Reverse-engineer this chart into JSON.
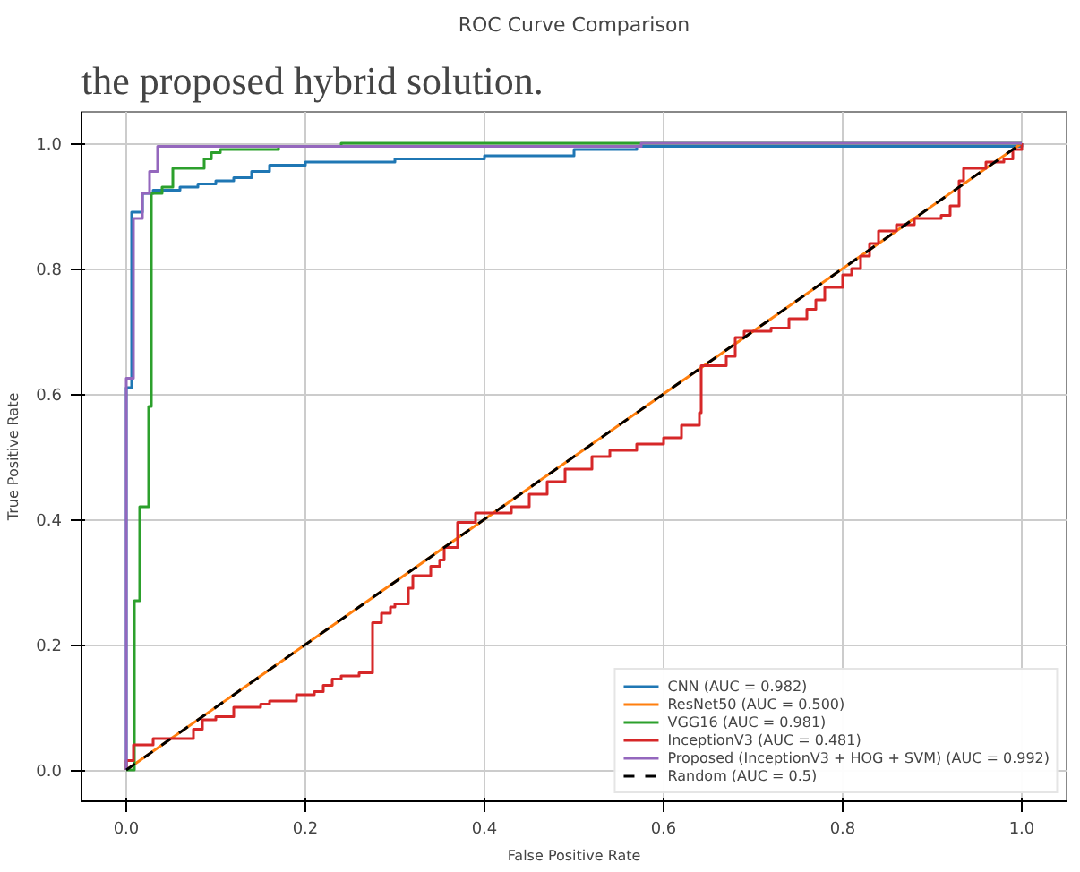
{
  "chart_data": {
    "type": "step",
    "title": "ROC Curve Comparison",
    "xlabel": "False Positive Rate",
    "ylabel": "True Positive Rate",
    "annotations": [
      "the proposed hybrid solution."
    ],
    "xlim": [
      -0.05,
      1.05
    ],
    "ylim": [
      -0.05,
      1.05
    ],
    "xticks": [
      {
        "value": 0,
        "label": "0.0"
      },
      {
        "value": 0.2,
        "label": "0.2"
      },
      {
        "value": 0.4,
        "label": "0.4"
      },
      {
        "value": 0.6,
        "label": "0.6"
      },
      {
        "value": 0.8,
        "label": "0.8"
      },
      {
        "value": 1,
        "label": "1.0"
      }
    ],
    "yticks": [
      {
        "value": 0,
        "label": "0.0"
      },
      {
        "value": 0.2,
        "label": "0.2"
      },
      {
        "value": 0.4,
        "label": "0.4"
      },
      {
        "value": 0.6,
        "label": "0.6"
      },
      {
        "value": 0.8,
        "label": "0.8"
      },
      {
        "value": 1,
        "label": "1.0"
      }
    ],
    "grid": true,
    "legend": "bottom right",
    "series": [
      {
        "name": "CNN (AUC = 0.982)",
        "color": "#1f77b4",
        "x": [
          0,
          0,
          0.006,
          0.018,
          0.03,
          0.06,
          0.08,
          0.1,
          0.12,
          0.14,
          0.16,
          0.2,
          0.3,
          0.4,
          0.5,
          0.57,
          1
        ],
        "values": [
          0,
          0.61,
          0.89,
          0.92,
          0.925,
          0.93,
          0.935,
          0.94,
          0.945,
          0.955,
          0.965,
          0.97,
          0.975,
          0.98,
          0.99,
          0.995,
          1
        ]
      },
      {
        "name": "ResNet50 (AUC = 0.500)",
        "color": "#ff7f0e",
        "type": "line",
        "x": [
          0,
          1
        ],
        "values": [
          0,
          1
        ]
      },
      {
        "name": "VGG16 (AUC = 0.981)",
        "color": "#2ca02c",
        "x": [
          0,
          0.009,
          0.015,
          0.025,
          0.028,
          0.04,
          0.052,
          0.087,
          0.095,
          0.105,
          0.17,
          0.24,
          1
        ],
        "values": [
          0,
          0.27,
          0.42,
          0.58,
          0.92,
          0.93,
          0.96,
          0.975,
          0.985,
          0.99,
          0.995,
          1,
          1
        ]
      },
      {
        "name": "InceptionV3 (AUC = 0.481)",
        "color": "#d62728",
        "x": [
          0,
          0,
          0.008,
          0.03,
          0.075,
          0.085,
          0.1,
          0.12,
          0.15,
          0.16,
          0.19,
          0.21,
          0.22,
          0.23,
          0.24,
          0.26,
          0.275,
          0.285,
          0.295,
          0.3,
          0.315,
          0.32,
          0.34,
          0.35,
          0.355,
          0.37,
          0.39,
          0.43,
          0.45,
          0.47,
          0.49,
          0.52,
          0.54,
          0.57,
          0.6,
          0.62,
          0.64,
          0.642,
          0.67,
          0.68,
          0.69,
          0.72,
          0.74,
          0.76,
          0.77,
          0.78,
          0.8,
          0.81,
          0.82,
          0.83,
          0.84,
          0.86,
          0.88,
          0.91,
          0.92,
          0.93,
          0.935,
          0.96,
          0.98,
          0.99,
          1
        ],
        "values": [
          0,
          0.015,
          0.04,
          0.05,
          0.065,
          0.08,
          0.085,
          0.1,
          0.105,
          0.11,
          0.12,
          0.125,
          0.135,
          0.145,
          0.15,
          0.155,
          0.235,
          0.25,
          0.26,
          0.265,
          0.29,
          0.31,
          0.325,
          0.335,
          0.355,
          0.395,
          0.41,
          0.42,
          0.44,
          0.46,
          0.48,
          0.5,
          0.51,
          0.52,
          0.53,
          0.55,
          0.57,
          0.645,
          0.66,
          0.69,
          0.7,
          0.705,
          0.72,
          0.735,
          0.75,
          0.77,
          0.79,
          0.8,
          0.82,
          0.84,
          0.86,
          0.87,
          0.88,
          0.885,
          0.9,
          0.94,
          0.96,
          0.97,
          0.975,
          0.99,
          1
        ]
      },
      {
        "name": "Proposed (InceptionV3 + HOG + SVM) (AUC = 0.992)",
        "color": "#9467bd",
        "x": [
          0,
          0,
          0.008,
          0.018,
          0.026,
          0.035,
          0.575,
          1
        ],
        "values": [
          0,
          0.625,
          0.88,
          0.92,
          0.955,
          0.995,
          1,
          1
        ]
      },
      {
        "name": "Random (AUC = 0.5)",
        "color": "#000000",
        "type": "line",
        "line_style": "dashed",
        "x": [
          0,
          1
        ],
        "values": [
          0,
          1
        ]
      }
    ]
  }
}
